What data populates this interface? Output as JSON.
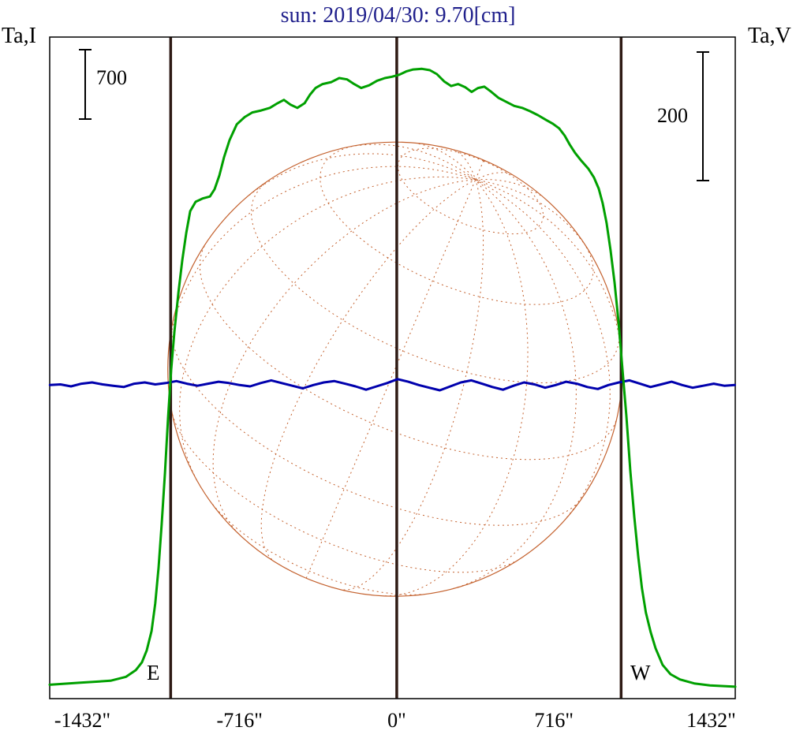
{
  "labels": {
    "left_axis": "Ta,I",
    "right_axis": "Ta,V",
    "east": "E",
    "west": "W",
    "left_scale_value": "700",
    "right_scale_value": "200"
  },
  "colors": {
    "background": "#ffffff",
    "title": "#20208c",
    "text": "#000000",
    "frame": "#000000",
    "limb_line": "#2e1a14",
    "intensity": "#00a000",
    "polarization": "#0000ad",
    "sun_grid": "#c4622f"
  },
  "chart_data": {
    "type": "line",
    "title": "sun: 2019/04/30: 9.70[cm]",
    "xlabel": "",
    "ylabel_left": "Ta,I",
    "ylabel_right": "Ta,V",
    "grid": false,
    "x_unit": "arcsec",
    "x_ticks": [
      "-1432\"",
      "-716\"",
      "0\"",
      "716\"",
      "1432\""
    ],
    "x_tick_values": [
      -1432,
      -716,
      0,
      716,
      1432
    ],
    "xlim": [
      -1581,
      1542
    ],
    "ylim_units": [
      0,
      1000
    ],
    "scale_bars": [
      {
        "label": "700",
        "series": "Ta,I",
        "side": "left"
      },
      {
        "label": "200",
        "series": "Ta,V",
        "side": "right"
      }
    ],
    "limb_lines": {
      "east_arcsec": -1030,
      "center_arcsec": 0,
      "west_arcsec": 1022
    },
    "sun_disk": {
      "center_arcsec": -8,
      "center_y_units": 498,
      "radius_arcsec": 1035,
      "lat_step_deg": 20,
      "lon_step_deg": 20,
      "b0_deg": 25,
      "p_deg": -23,
      "color": "#c4622f"
    },
    "series": [
      {
        "name": "Ta,I",
        "color": "#00a000",
        "points": [
          [
            -1581,
            21
          ],
          [
            -1448,
            24
          ],
          [
            -1304,
            27
          ],
          [
            -1233,
            33
          ],
          [
            -1189,
            43
          ],
          [
            -1161,
            55
          ],
          [
            -1139,
            73
          ],
          [
            -1117,
            102
          ],
          [
            -1100,
            144
          ],
          [
            -1085,
            198
          ],
          [
            -1071,
            263
          ],
          [
            -1056,
            341
          ],
          [
            -1042,
            424
          ],
          [
            -1028,
            496
          ],
          [
            -1013,
            555
          ],
          [
            -995,
            613
          ],
          [
            -977,
            663
          ],
          [
            -959,
            704
          ],
          [
            -941,
            737
          ],
          [
            -916,
            751
          ],
          [
            -884,
            756
          ],
          [
            -851,
            759
          ],
          [
            -830,
            770
          ],
          [
            -808,
            791
          ],
          [
            -787,
            818
          ],
          [
            -762,
            844
          ],
          [
            -729,
            868
          ],
          [
            -693,
            879
          ],
          [
            -658,
            886
          ],
          [
            -618,
            889
          ],
          [
            -578,
            893
          ],
          [
            -543,
            900
          ],
          [
            -514,
            905
          ],
          [
            -485,
            898
          ],
          [
            -453,
            893
          ],
          [
            -420,
            900
          ],
          [
            -395,
            913
          ],
          [
            -370,
            923
          ],
          [
            -338,
            929
          ],
          [
            -298,
            932
          ],
          [
            -262,
            938
          ],
          [
            -226,
            936
          ],
          [
            -194,
            929
          ],
          [
            -162,
            923
          ],
          [
            -126,
            927
          ],
          [
            -90,
            934
          ],
          [
            -54,
            938
          ],
          [
            -22,
            940
          ],
          [
            11,
            943
          ],
          [
            43,
            948
          ],
          [
            75,
            951
          ],
          [
            115,
            952
          ],
          [
            151,
            950
          ],
          [
            183,
            944
          ],
          [
            216,
            933
          ],
          [
            248,
            926
          ],
          [
            280,
            929
          ],
          [
            313,
            924
          ],
          [
            341,
            917
          ],
          [
            370,
            923
          ],
          [
            399,
            925
          ],
          [
            431,
            917
          ],
          [
            464,
            908
          ],
          [
            499,
            902
          ],
          [
            535,
            896
          ],
          [
            571,
            893
          ],
          [
            607,
            888
          ],
          [
            643,
            882
          ],
          [
            679,
            875
          ],
          [
            711,
            869
          ],
          [
            740,
            862
          ],
          [
            765,
            851
          ],
          [
            787,
            838
          ],
          [
            812,
            825
          ],
          [
            841,
            813
          ],
          [
            873,
            801
          ],
          [
            898,
            788
          ],
          [
            920,
            771
          ],
          [
            938,
            749
          ],
          [
            956,
            719
          ],
          [
            974,
            678
          ],
          [
            992,
            629
          ],
          [
            1010,
            570
          ],
          [
            1028,
            498
          ],
          [
            1046,
            427
          ],
          [
            1064,
            344
          ],
          [
            1082,
            275
          ],
          [
            1100,
            215
          ],
          [
            1117,
            167
          ],
          [
            1135,
            130
          ],
          [
            1157,
            100
          ],
          [
            1179,
            76
          ],
          [
            1211,
            51
          ],
          [
            1247,
            37
          ],
          [
            1290,
            29
          ],
          [
            1355,
            23
          ],
          [
            1427,
            20
          ],
          [
            1542,
            18
          ]
        ]
      },
      {
        "name": "Ta,V",
        "color": "#0000ad",
        "points": [
          [
            -1580,
            474
          ],
          [
            -1532,
            475
          ],
          [
            -1484,
            472
          ],
          [
            -1436,
            476
          ],
          [
            -1388,
            478
          ],
          [
            -1340,
            475
          ],
          [
            -1292,
            473
          ],
          [
            -1244,
            471
          ],
          [
            -1196,
            476
          ],
          [
            -1148,
            478
          ],
          [
            -1100,
            475
          ],
          [
            -1052,
            477
          ],
          [
            -1004,
            480
          ],
          [
            -956,
            476
          ],
          [
            -908,
            473
          ],
          [
            -860,
            476
          ],
          [
            -812,
            479
          ],
          [
            -764,
            477
          ],
          [
            -716,
            474
          ],
          [
            -668,
            472
          ],
          [
            -620,
            477
          ],
          [
            -572,
            481
          ],
          [
            -524,
            477
          ],
          [
            -476,
            473
          ],
          [
            -428,
            469
          ],
          [
            -380,
            474
          ],
          [
            -332,
            478
          ],
          [
            -284,
            480
          ],
          [
            -236,
            476
          ],
          [
            -188,
            472
          ],
          [
            -140,
            467
          ],
          [
            -92,
            472
          ],
          [
            -44,
            477
          ],
          [
            4,
            483
          ],
          [
            52,
            479
          ],
          [
            100,
            474
          ],
          [
            148,
            470
          ],
          [
            196,
            466
          ],
          [
            244,
            472
          ],
          [
            292,
            478
          ],
          [
            340,
            481
          ],
          [
            388,
            476
          ],
          [
            436,
            471
          ],
          [
            484,
            467
          ],
          [
            532,
            473
          ],
          [
            580,
            478
          ],
          [
            628,
            475
          ],
          [
            676,
            470
          ],
          [
            724,
            474
          ],
          [
            772,
            479
          ],
          [
            820,
            476
          ],
          [
            868,
            471
          ],
          [
            916,
            468
          ],
          [
            964,
            474
          ],
          [
            1012,
            478
          ],
          [
            1060,
            481
          ],
          [
            1108,
            476
          ],
          [
            1156,
            471
          ],
          [
            1204,
            475
          ],
          [
            1252,
            479
          ],
          [
            1300,
            474
          ],
          [
            1348,
            470
          ],
          [
            1396,
            473
          ],
          [
            1444,
            476
          ],
          [
            1492,
            473
          ],
          [
            1540,
            474
          ]
        ]
      }
    ]
  }
}
